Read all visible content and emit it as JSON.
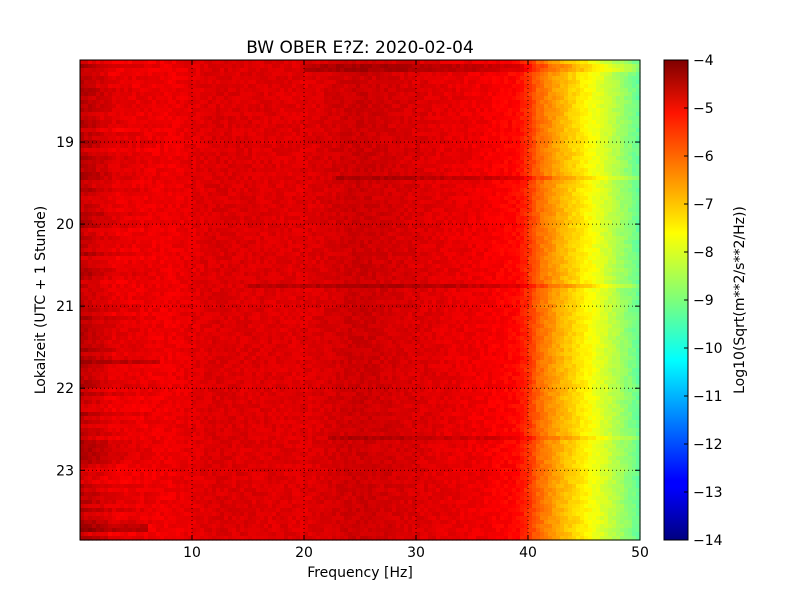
{
  "chart_data": {
    "type": "heatmap",
    "title": "BW OBER E?Z: 2020-02-04",
    "xlabel": "Frequency [Hz]",
    "ylabel": "Lokalzeit (UTC + 1 Stunde)",
    "colorbar_label": "Log10(Sqrt(m**2/s**2/Hz))",
    "xlim": [
      0,
      50
    ],
    "ylim": [
      18.0,
      23.85
    ],
    "y_inverted": true,
    "xticks": [
      10,
      20,
      30,
      40,
      50
    ],
    "xtick_labels": [
      "10",
      "20",
      "30",
      "40",
      "50"
    ],
    "yticks": [
      19,
      20,
      21,
      22,
      23
    ],
    "ytick_labels": [
      "19",
      "20",
      "21",
      "22",
      "23"
    ],
    "clim": [
      -14,
      -4
    ],
    "cticks": [
      -4,
      -5,
      -6,
      -7,
      -8,
      -9,
      -10,
      -11,
      -12,
      -13,
      -14
    ],
    "ctick_labels": [
      "−4",
      "−5",
      "−6",
      "−7",
      "−8",
      "−9",
      "−10",
      "−11",
      "−12",
      "−13",
      "−14"
    ],
    "colormap": "jet",
    "grid": true,
    "profile_freq_hz": [
      0,
      3,
      8,
      12,
      20,
      25,
      30,
      36,
      39,
      40,
      41,
      43,
      45,
      47,
      49,
      50
    ],
    "profile_log_amplitude": [
      -4.6,
      -5.0,
      -5.1,
      -4.9,
      -4.95,
      -4.75,
      -4.9,
      -5.1,
      -5.3,
      -5.7,
      -6.3,
      -7.0,
      -7.6,
      -8.2,
      -8.9,
      -9.3
    ],
    "disturbances": [
      {
        "time": 18.1,
        "f_start": 20,
        "f_end": 50,
        "strength": 0.4
      },
      {
        "time": 19.45,
        "f_start": 23,
        "f_end": 50,
        "strength": 0.35
      },
      {
        "time": 20.75,
        "f_start": 15,
        "f_end": 50,
        "strength": 0.4
      },
      {
        "time": 21.7,
        "f_start": 0,
        "f_end": 7,
        "strength": 0.5
      },
      {
        "time": 22.6,
        "f_start": 22,
        "f_end": 50,
        "strength": 0.3
      },
      {
        "time": 23.7,
        "f_start": 0,
        "f_end": 6,
        "strength": 0.5
      }
    ]
  }
}
